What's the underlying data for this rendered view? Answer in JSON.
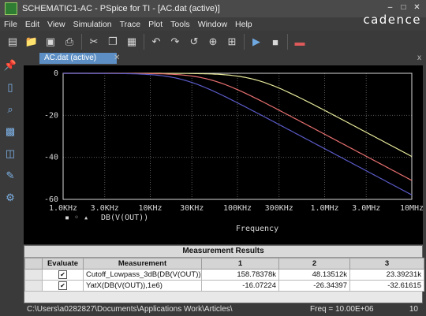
{
  "window": {
    "title": "SCHEMATIC1-AC - PSpice for TI - [AC.dat (active)]",
    "controls": [
      "–",
      "□",
      "✕"
    ]
  },
  "menu": {
    "items": [
      "File",
      "Edit",
      "View",
      "Simulation",
      "Trace",
      "Plot",
      "Tools",
      "Window",
      "Help"
    ],
    "brand": "cadence"
  },
  "toolbar": {
    "icons": [
      "new-icon",
      "open-icon",
      "save-icon",
      "print-icon",
      "cut-icon",
      "copy-icon",
      "paste-icon",
      "undo-icon",
      "redo-icon",
      "rotate-icon",
      "zoom-icon",
      "zoom-fit-icon",
      "run-icon",
      "stop-icon",
      "markers-icon"
    ]
  },
  "tab": {
    "label": "AC.dat (active)",
    "close": "✕",
    "right": "x"
  },
  "plot": {
    "colors": {
      "background": "#000000",
      "grid": "#5a5a5a",
      "axis": "#d8d8d8",
      "trace_yellow": "#e6e89a",
      "trace_red": "#e87070",
      "trace_blue": "#5a5ac8"
    },
    "y_tick_labels": [
      "0",
      "-20",
      "-40",
      "-60"
    ],
    "x_tick_labels": [
      "1.0KHz",
      "3.0KHz",
      "10KHz",
      "30KHz",
      "100KHz",
      "300KHz",
      "1.0MHz",
      "3.0MHz",
      "10MHz"
    ],
    "legend_text": "DB(V(OUT))",
    "legend_markers": "▪ ◦ ▴",
    "xlabel": "Frequency"
  },
  "chart_data": {
    "type": "line",
    "x_scale": "log",
    "xlim": [
      1000,
      10000000
    ],
    "ylim": [
      -60,
      0
    ],
    "xlabel": "Frequency",
    "series": [
      {
        "color": "#e6e89a",
        "fc": 158783.78
      },
      {
        "color": "#e87070",
        "fc": 48135.12
      },
      {
        "color": "#5a5ac8",
        "fc": 23392.31
      }
    ]
  },
  "measurements": {
    "title": "Measurement Results",
    "columns": [
      "Evaluate",
      "Measurement",
      "1",
      "2",
      "3"
    ],
    "rows": [
      {
        "measurement": "Cutoff_Lowpass_3dB(DB(V(OUT)))",
        "v1": "158.78378k",
        "v2": "48.13512k",
        "v3": "23.39231k",
        "evaluate": "✔"
      },
      {
        "measurement": "YatX(DB(V(OUT)),1e6)",
        "v1": "-16.07224",
        "v2": "-26.34397",
        "v3": "-32.61615",
        "evaluate": "✔"
      }
    ]
  },
  "status": {
    "path": "C:\\Users\\a0282827\\Documents\\Applications Work\\Articles\\",
    "freq": "Freq = 10.00E+06",
    "page": "10"
  }
}
